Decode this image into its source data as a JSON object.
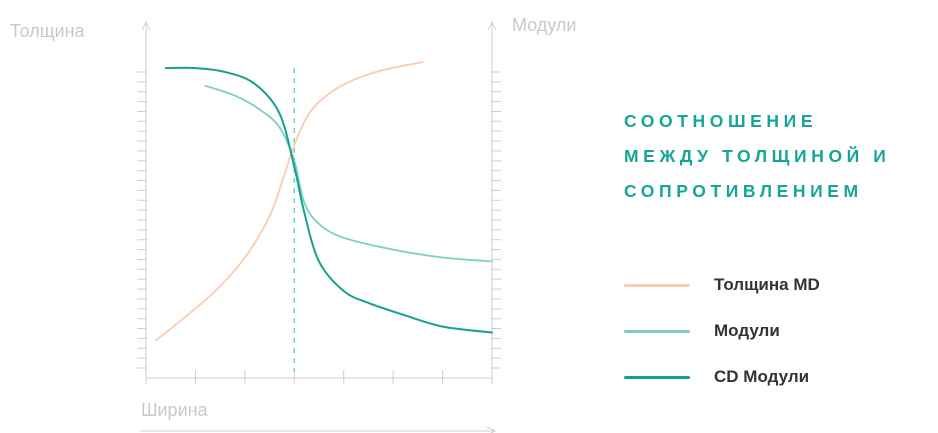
{
  "chart_data": {
    "type": "line",
    "title_lines": [
      "СООТНОШЕНИЕ",
      "МЕЖДУ ТОЛЩИНОЙ И",
      "СОПРОТИВЛЕНИЕМ"
    ],
    "xlabel": "Ширина",
    "ylabel_left": "Толщина",
    "ylabel_right": "Модули",
    "xlim": [
      0,
      7
    ],
    "ylim": [
      0,
      15
    ],
    "marker_x": 3,
    "x_ticks": [
      0,
      1,
      2,
      3,
      4,
      5,
      6,
      7
    ],
    "y_ticks": [
      0,
      0.5,
      1,
      1.5,
      2,
      2.5,
      3,
      3.5,
      4,
      4.5,
      5,
      5.5,
      6,
      6.5,
      7,
      7.5,
      8,
      8.5,
      9,
      9.5,
      10,
      10.5,
      11,
      11.5,
      12,
      12.5,
      13,
      13.5,
      14,
      14.5,
      15
    ],
    "grid": false,
    "legend_position": "right",
    "series": [
      {
        "name": "Толщина MD",
        "color": "#f9cbb0",
        "x": [
          0.2,
          0.8,
          1.4,
          2.0,
          2.5,
          2.8,
          3.0,
          3.3,
          3.7,
          4.2,
          4.8,
          5.6
        ],
        "y": [
          1.4,
          2.6,
          3.9,
          5.6,
          7.7,
          9.8,
          11.3,
          12.9,
          13.9,
          14.6,
          15.1,
          15.5
        ]
      },
      {
        "name": "Модули",
        "color": "#7dcfc4",
        "x": [
          1.2,
          1.8,
          2.3,
          2.7,
          3.0,
          3.2,
          3.5,
          4.0,
          5.0,
          6.0,
          7.0
        ],
        "y": [
          14.3,
          13.8,
          13.1,
          12.2,
          10.5,
          8.4,
          7.3,
          6.6,
          6.0,
          5.6,
          5.4
        ]
      },
      {
        "name": "CD Модули",
        "color": "#16a18f",
        "x": [
          0.4,
          1.0,
          1.6,
          2.2,
          2.7,
          3.0,
          3.2,
          3.5,
          4.0,
          4.5,
          5.2,
          6.0,
          7.0
        ],
        "y": [
          15.2,
          15.2,
          15.0,
          14.4,
          12.9,
          10.2,
          7.9,
          5.4,
          3.9,
          3.3,
          2.7,
          2.1,
          1.8
        ]
      }
    ]
  }
}
